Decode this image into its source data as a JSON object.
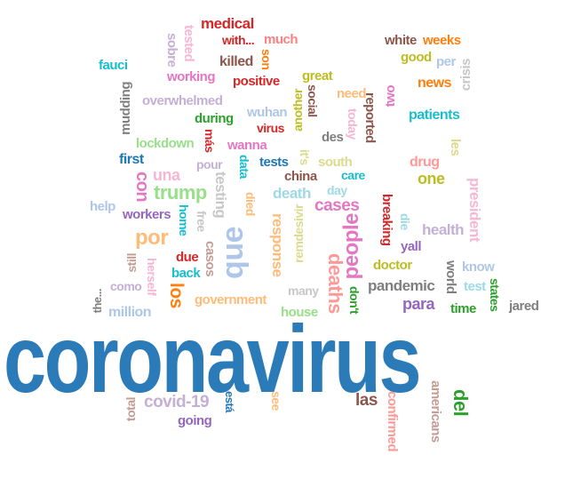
{
  "words": [
    {
      "id": "w0",
      "text": "coronavirus",
      "color": "#2b7bb9"
    },
    {
      "id": "w1",
      "text": "medical",
      "color": "#d62728"
    },
    {
      "id": "w2",
      "text": "with...",
      "color": "#d62728"
    },
    {
      "id": "w3",
      "text": "much",
      "color": "#ff7f7f"
    },
    {
      "id": "w4",
      "text": "tested",
      "color": "#f7b6d2"
    },
    {
      "id": "w5",
      "text": "sobre",
      "color": "#c5b0d5"
    },
    {
      "id": "w6",
      "text": "killed",
      "color": "#8c564b"
    },
    {
      "id": "w7",
      "text": "son",
      "color": "#ff7f0e"
    },
    {
      "id": "w8",
      "text": "fauci",
      "color": "#17becf"
    },
    {
      "id": "w9",
      "text": "white",
      "color": "#8c564b"
    },
    {
      "id": "w10",
      "text": "weeks",
      "color": "#ff7f0e"
    },
    {
      "id": "w11",
      "text": "good",
      "color": "#bcbd22"
    },
    {
      "id": "w12",
      "text": "per",
      "color": "#aec7e8"
    },
    {
      "id": "w13",
      "text": "crisis",
      "color": "#c7c7c7"
    },
    {
      "id": "w14",
      "text": "working",
      "color": "#e377c2"
    },
    {
      "id": "w15",
      "text": "positive",
      "color": "#d62728"
    },
    {
      "id": "w16",
      "text": "great",
      "color": "#bcbd22"
    },
    {
      "id": "w17",
      "text": "news",
      "color": "#ff7f0e"
    },
    {
      "id": "w18",
      "text": "mudding",
      "color": "#7f7f7f"
    },
    {
      "id": "w19",
      "text": "social",
      "color": "#8c564b"
    },
    {
      "id": "w20",
      "text": "another",
      "color": "#bcbd22"
    },
    {
      "id": "w21",
      "text": "need",
      "color": "#ffbb78"
    },
    {
      "id": "w22",
      "text": "two",
      "color": "#e377c2"
    },
    {
      "id": "w23",
      "text": "overwhelmed",
      "color": "#c5b0d5"
    },
    {
      "id": "w24",
      "text": "wuhan",
      "color": "#aec7e8"
    },
    {
      "id": "w25",
      "text": "reported",
      "color": "#8c564b"
    },
    {
      "id": "w26",
      "text": "patients",
      "color": "#17becf"
    },
    {
      "id": "w27",
      "text": "during",
      "color": "#2ca02c"
    },
    {
      "id": "w28",
      "text": "virus",
      "color": "#d62728"
    },
    {
      "id": "w29",
      "text": "today",
      "color": "#f7b6d2"
    },
    {
      "id": "w30",
      "text": "des",
      "color": "#7f7f7f"
    },
    {
      "id": "w31",
      "text": "lockdown",
      "color": "#98df8a"
    },
    {
      "id": "w32",
      "text": "más",
      "color": "#d62728"
    },
    {
      "id": "w33",
      "text": "wanna",
      "color": "#e377c2"
    },
    {
      "id": "w34",
      "text": "les",
      "color": "#dbdb8d"
    },
    {
      "id": "w35",
      "text": "first",
      "color": "#1f77b4"
    },
    {
      "id": "w36",
      "text": "pour",
      "color": "#c5b0d5"
    },
    {
      "id": "w37",
      "text": "data",
      "color": "#17becf"
    },
    {
      "id": "w38",
      "text": "tests",
      "color": "#1f77b4"
    },
    {
      "id": "w39",
      "text": "it's",
      "color": "#dbdb8d"
    },
    {
      "id": "w40",
      "text": "south",
      "color": "#dbdb8d"
    },
    {
      "id": "w41",
      "text": "drug",
      "color": "#ff9896"
    },
    {
      "id": "w42",
      "text": "una",
      "color": "#f7b6d2"
    },
    {
      "id": "w43",
      "text": "care",
      "color": "#17becf"
    },
    {
      "id": "w44",
      "text": "one",
      "color": "#bcbd22"
    },
    {
      "id": "w45",
      "text": "president",
      "color": "#f7b6d2"
    },
    {
      "id": "w46",
      "text": "con",
      "color": "#e377c2"
    },
    {
      "id": "w47",
      "text": "trump",
      "color": "#98df8a"
    },
    {
      "id": "w48",
      "text": "testing",
      "color": "#c7c7c7"
    },
    {
      "id": "w49",
      "text": "died",
      "color": "#ffbb78"
    },
    {
      "id": "w50",
      "text": "china",
      "color": "#8c564b"
    },
    {
      "id": "w51",
      "text": "day",
      "color": "#9edae5"
    },
    {
      "id": "w52",
      "text": "death",
      "color": "#9edae5"
    },
    {
      "id": "w53",
      "text": "help",
      "color": "#aec7e8"
    },
    {
      "id": "w54",
      "text": "workers",
      "color": "#9467bd"
    },
    {
      "id": "w55",
      "text": "home",
      "color": "#17becf"
    },
    {
      "id": "w56",
      "text": "free",
      "color": "#c7c7c7"
    },
    {
      "id": "w57",
      "text": "remdesivir",
      "color": "#dbdb8d"
    },
    {
      "id": "w58",
      "text": "cases",
      "color": "#e377c2"
    },
    {
      "id": "w59",
      "text": "breaking",
      "color": "#d62728"
    },
    {
      "id": "w60",
      "text": "die",
      "color": "#9edae5"
    },
    {
      "id": "w61",
      "text": "health",
      "color": "#c5b0d5"
    },
    {
      "id": "w62",
      "text": "por",
      "color": "#ffbb78"
    },
    {
      "id": "w63",
      "text": "que",
      "color": "#aec7e8"
    },
    {
      "id": "w64",
      "text": "response",
      "color": "#ffbb78"
    },
    {
      "id": "w65",
      "text": "people",
      "color": "#e377c2"
    },
    {
      "id": "w66",
      "text": "yall",
      "color": "#9467bd"
    },
    {
      "id": "w67",
      "text": "casos",
      "color": "#c49c94"
    },
    {
      "id": "w68",
      "text": "due",
      "color": "#d62728"
    },
    {
      "id": "w69",
      "text": "back",
      "color": "#17becf"
    },
    {
      "id": "w70",
      "text": "still",
      "color": "#c49c94"
    },
    {
      "id": "w71",
      "text": "herself",
      "color": "#f7b6d2"
    },
    {
      "id": "w72",
      "text": "deaths",
      "color": "#ff9896"
    },
    {
      "id": "w73",
      "text": "doctor",
      "color": "#bcbd22"
    },
    {
      "id": "w74",
      "text": "world",
      "color": "#7f7f7f"
    },
    {
      "id": "w75",
      "text": "know",
      "color": "#aec7e8"
    },
    {
      "id": "w76",
      "text": "como",
      "color": "#c5b0d5"
    },
    {
      "id": "w77",
      "text": "the...",
      "color": "#7f7f7f"
    },
    {
      "id": "w78",
      "text": "los",
      "color": "#ff7f0e"
    },
    {
      "id": "w79",
      "text": "many",
      "color": "#c7c7c7"
    },
    {
      "id": "w80",
      "text": "pandemic",
      "color": "#7f7f7f"
    },
    {
      "id": "w81",
      "text": "test",
      "color": "#9edae5"
    },
    {
      "id": "w82",
      "text": "don't",
      "color": "#2ca02c"
    },
    {
      "id": "w83",
      "text": "government",
      "color": "#ffbb78"
    },
    {
      "id": "w84",
      "text": "para",
      "color": "#9467bd"
    },
    {
      "id": "w85",
      "text": "states",
      "color": "#2ca02c"
    },
    {
      "id": "w86",
      "text": "jared",
      "color": "#7f7f7f"
    },
    {
      "id": "w87",
      "text": "million",
      "color": "#aec7e8"
    },
    {
      "id": "w88",
      "text": "house",
      "color": "#98df8a"
    },
    {
      "id": "w89",
      "text": "time",
      "color": "#2ca02c"
    },
    {
      "id": "w90",
      "text": "covid-19",
      "color": "#c5b0d5"
    },
    {
      "id": "w91",
      "text": "está",
      "color": "#1f77b4"
    },
    {
      "id": "w92",
      "text": "see",
      "color": "#ffbb78"
    },
    {
      "id": "w93",
      "text": "las",
      "color": "#8c564b"
    },
    {
      "id": "w94",
      "text": "americans",
      "color": "#c49c94"
    },
    {
      "id": "w95",
      "text": "del",
      "color": "#2ca02c"
    },
    {
      "id": "w96",
      "text": "total",
      "color": "#c49c94"
    },
    {
      "id": "w97",
      "text": "going",
      "color": "#9467bd"
    },
    {
      "id": "w98",
      "text": "confirmed",
      "color": "#ff9896"
    }
  ]
}
